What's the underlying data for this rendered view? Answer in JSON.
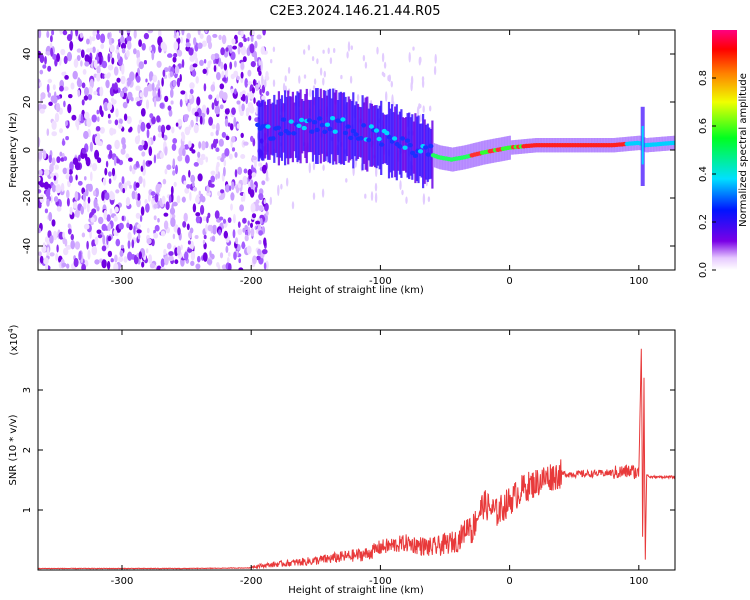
{
  "title": "C2E3.2024.146.21.44.R05",
  "chart_data": [
    {
      "type": "heatmap",
      "xlabel": "Height of straight line (km)",
      "ylabel": "Frequency (Hz)",
      "xlim": [
        -365,
        128
      ],
      "ylim": [
        -50,
        50
      ],
      "xticks": [
        -300,
        -200,
        -100,
        0,
        100
      ],
      "yticks": [
        -40,
        -20,
        0,
        20,
        40
      ],
      "colorbar": {
        "label": "Normalized spectral amplitude",
        "range": [
          0,
          1
        ],
        "ticks": [
          "0.0",
          "0.2",
          "0.4",
          "0.6",
          "0.8"
        ],
        "tick_values": [
          0,
          0.2,
          0.4,
          0.6,
          0.8
        ]
      },
      "trace": {
        "x": [
          -195,
          -180,
          -160,
          -140,
          -120,
          -100,
          -80,
          -65,
          -55,
          -45,
          -35,
          -20,
          0,
          20,
          40,
          60,
          80,
          100,
          105,
          128
        ],
        "y": [
          8,
          9,
          10,
          10,
          8,
          5,
          2,
          -1,
          -3,
          -4,
          -3,
          -1,
          1,
          2,
          2,
          2,
          2,
          3,
          2,
          3
        ]
      },
      "noise_region": [
        -365,
        -195
      ]
    },
    {
      "type": "line",
      "xlabel": "Height of straight line (km)",
      "ylabel": "SNR (10 * v/v)",
      "yscale_label": "(x10",
      "yscale_exp": "4",
      "xlim": [
        -365,
        128
      ],
      "ylim": [
        0,
        4
      ],
      "xticks": [
        -300,
        -200,
        -100,
        0,
        100
      ],
      "yticks": [
        1,
        2,
        3
      ],
      "series": [
        {
          "color": "#e8393a",
          "x": [
            -365,
            -250,
            -200,
            -180,
            -150,
            -130,
            -110,
            -100,
            -80,
            -60,
            -40,
            -30,
            -25,
            -20,
            -10,
            0,
            10,
            20,
            30,
            40,
            60,
            80,
            95,
            100,
            102,
            103,
            104,
            105,
            106,
            108,
            110,
            128
          ],
          "y": [
            0.02,
            0.02,
            0.03,
            0.05,
            0.08,
            0.12,
            0.15,
            0.25,
            0.3,
            0.2,
            0.3,
            0.6,
            0.9,
            1.1,
            0.95,
            1.15,
            1.35,
            1.45,
            1.55,
            1.6,
            1.6,
            1.62,
            1.65,
            1.6,
            3.8,
            0.4,
            3.2,
            0.1,
            1.6,
            1.55,
            1.55,
            1.55
          ]
        }
      ]
    }
  ]
}
